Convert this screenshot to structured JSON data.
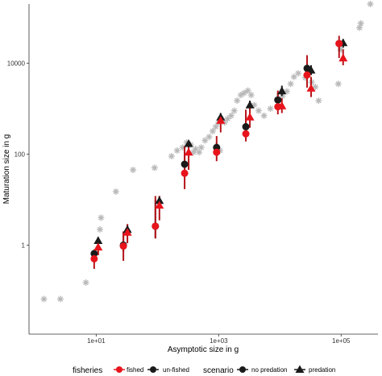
{
  "chart_data": {
    "type": "scatter",
    "title": "",
    "xlabel": "Asymptotic size in g",
    "ylabel": "Maturation size in g",
    "x_scale": "log10",
    "y_scale": "log10",
    "xlim": [
      0.8,
      400000
    ],
    "ylim": [
      0.011,
      200000
    ],
    "x_ticks": [
      10,
      1000,
      100000
    ],
    "x_tick_labels": [
      "1e+01",
      "1e+03",
      "1e+05"
    ],
    "y_ticks": [
      1,
      100,
      10000
    ],
    "y_tick_labels": [
      "1",
      "100",
      "10000"
    ],
    "grid": false,
    "legend_position": "bottom",
    "legend": {
      "fisheries_title": "fisheries",
      "fisheries_items": [
        "fished",
        "un-fished"
      ],
      "scenario_title": "scenario",
      "scenario_items": [
        "no predation",
        "predation"
      ]
    },
    "colors": {
      "fished": "#e8141c",
      "un_fished": "#1a1a1a",
      "observed": "#b8b8b8",
      "fished_bar": "#b5141a"
    },
    "observed_points": [
      [
        1.4,
        0.065
      ],
      [
        2.6,
        0.065
      ],
      [
        6.8,
        0.15
      ],
      [
        11.5,
        2.2
      ],
      [
        12,
        4
      ],
      [
        21,
        15
      ],
      [
        40,
        45
      ],
      [
        90,
        50
      ],
      [
        170,
        90
      ],
      [
        210,
        120
      ],
      [
        260,
        140
      ],
      [
        300,
        180
      ],
      [
        350,
        160
      ],
      [
        390,
        110
      ],
      [
        420,
        130
      ],
      [
        480,
        110
      ],
      [
        520,
        140
      ],
      [
        600,
        200
      ],
      [
        700,
        240
      ],
      [
        800,
        320
      ],
      [
        900,
        400
      ],
      [
        1000,
        500
      ],
      [
        1100,
        600
      ],
      [
        1250,
        500
      ],
      [
        1400,
        600
      ],
      [
        1600,
        700
      ],
      [
        1800,
        900
      ],
      [
        2000,
        1500
      ],
      [
        2300,
        2000
      ],
      [
        2600,
        2200
      ],
      [
        3000,
        2500
      ],
      [
        3400,
        2000
      ],
      [
        3800,
        1200
      ],
      [
        4500,
        900
      ],
      [
        5500,
        700
      ],
      [
        7000,
        1000
      ],
      [
        9000,
        1600
      ],
      [
        11000,
        1900
      ],
      [
        13000,
        2400
      ],
      [
        15000,
        3500
      ],
      [
        17000,
        5000
      ],
      [
        20000,
        6000
      ],
      [
        26000,
        4800
      ],
      [
        33000,
        3800
      ],
      [
        38000,
        3000
      ],
      [
        43000,
        1500
      ],
      [
        90000,
        3500
      ],
      [
        100000,
        20000
      ],
      [
        200000,
        60000
      ],
      [
        210000,
        75000
      ],
      [
        300000,
        200000
      ],
      [
        1050,
        120
      ]
    ],
    "series": [
      {
        "fisheries": "fished",
        "scenario": "no predation",
        "x": [
          10,
          30,
          100,
          300,
          1000,
          3000,
          10000,
          30000,
          100000
        ],
        "y": [
          0.5,
          0.95,
          2.6,
          38,
          110,
          280,
          1100,
          5500,
          27000
        ],
        "y_low": [
          0.3,
          0.45,
          1.4,
          17,
          70,
          190,
          750,
          2900,
          13000
        ],
        "y_high": [
          0.75,
          2.0,
          12,
          150,
          250,
          950,
          2500,
          15000,
          40000
        ]
      },
      {
        "fisheries": "un-fished",
        "scenario": "no predation",
        "x": [
          10,
          30,
          100,
          300,
          1000,
          3000,
          10000,
          30000,
          100000
        ],
        "y": [
          0.65,
          1.0,
          2.6,
          60,
          140,
          400,
          1550,
          7700,
          27000
        ],
        "y_low": [
          0.5,
          0.7,
          1.4,
          40,
          110,
          260,
          1200,
          5000,
          18000
        ],
        "y_high": [
          0.8,
          1.9,
          10,
          110,
          180,
          700,
          2200,
          10000,
          32000
        ]
      },
      {
        "fisheries": "fished",
        "scenario": "predation",
        "x": [
          10,
          30,
          100,
          300,
          1000,
          3000,
          10000,
          30000,
          100000
        ],
        "y": [
          0.9,
          1.9,
          7.5,
          110,
          550,
          650,
          1150,
          2800,
          13000
        ],
        "y_low": [
          0.6,
          1.1,
          3.5,
          45,
          300,
          380,
          800,
          1800,
          9000
        ],
        "y_high": [
          1.3,
          2.9,
          12,
          160,
          700,
          1050,
          1700,
          5000,
          20000
        ]
      },
      {
        "fisheries": "un-fished",
        "scenario": "predation",
        "x": [
          10,
          30,
          100,
          300,
          1000,
          3000,
          10000,
          30000,
          100000
        ],
        "y": [
          1.25,
          2.2,
          9.5,
          170,
          650,
          1200,
          2450,
          7000,
          28000
        ],
        "y_low": [
          1.0,
          1.7,
          7.5,
          130,
          500,
          900,
          1900,
          5500,
          22000
        ],
        "y_high": [
          1.5,
          2.8,
          12,
          200,
          800,
          1500,
          3200,
          9000,
          34000
        ]
      }
    ]
  }
}
